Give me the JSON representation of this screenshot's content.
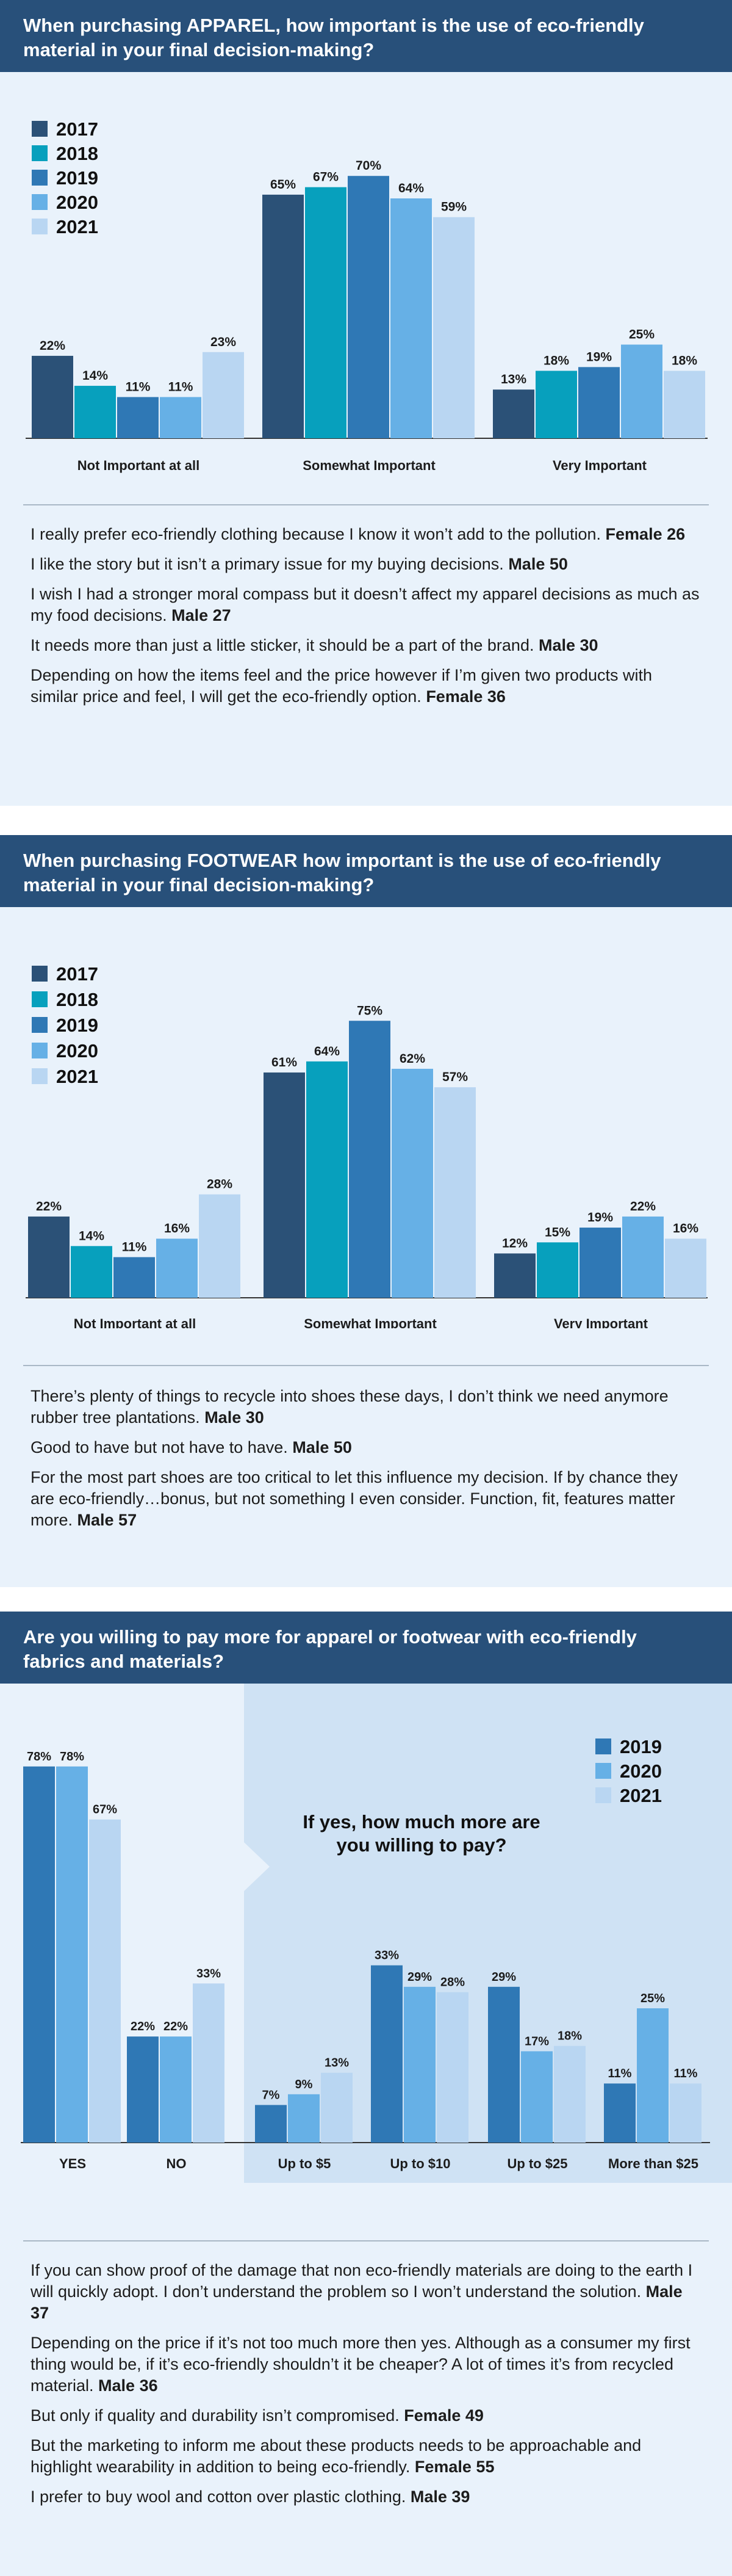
{
  "colors": {
    "header_bg": "#28507a",
    "panel_bg": "#e9f2fb",
    "inset_bg": "#cfe2f4",
    "y2017": "#2b5177",
    "y2018": "#07a0bd",
    "y2019": "#2f78b5",
    "y2020": "#66b0e6",
    "y2021": "#b9d6f2"
  },
  "apparel": {
    "title": "When purchasing APPAREL, how important is the use of eco-friendly material in your final decision-making?",
    "quotes": [
      {
        "text": "I really prefer eco-friendly clothing because I know it won’t add to the pollution.",
        "author": "Female 26"
      },
      {
        "text": "I like the story but it isn’t a primary issue for my buying decisions.",
        "author": "Male 50"
      },
      {
        "text": "I wish I had a stronger moral compass but it doesn’t affect my apparel decisions as much as my food decisions.",
        "author": "Male 27"
      },
      {
        "text": "It needs more than just a little sticker, it should be a part of the brand.",
        "author": "Male 30"
      },
      {
        "text": "Depending on how the items feel and the price however if I’m given two products with similar price and feel, I will get the eco-friendly option.",
        "author": "Female 36"
      }
    ]
  },
  "footwear": {
    "title": "When purchasing FOOTWEAR how important is the use of eco-friendly material in your final decision-making?",
    "quotes": [
      {
        "text": "There’s plenty of things to recycle into shoes these days, I don’t think we need anymore rubber tree plantations.",
        "author": "Male 30"
      },
      {
        "text": "Good to have but not have to have.",
        "author": "Male 50"
      },
      {
        "text": "For the most part shoes are too critical to let this influence my decision. If by chance they are eco-friendly…bonus, but not something I even consider. Function, fit, features matter more.",
        "author": "Male 57"
      }
    ]
  },
  "pay": {
    "title": "Are you willing to pay more for apparel or footwear with eco-friendly fabrics and materials?",
    "how_much_label": "If yes, how much more are you willing to pay?",
    "quotes": [
      {
        "text": "If you can show proof of the damage that non eco-friendly materials are doing to the earth I will quickly adopt. I don’t understand the problem so I won’t understand the solution.",
        "author": "Male 37"
      },
      {
        "text": "Depending on the price if it’s not too much more then yes. Although as a consumer my first thing would be, if it’s eco-friendly shouldn’t it be cheaper? A lot of times it’s from recycled material.",
        "author": "Male 36"
      },
      {
        "text": "But only if quality and durability isn’t compromised.",
        "author": "Female 49"
      },
      {
        "text": "But the marketing to inform me about these products needs to be approachable and highlight wearability in addition to being eco-friendly.",
        "author": "Female 55"
      },
      {
        "text": "I prefer to buy wool and cotton over plastic clothing.",
        "author": "Male 39"
      }
    ]
  },
  "chart_data": [
    {
      "type": "bar",
      "title": "When purchasing APPAREL, how important is the use of eco-friendly material in your final decision-making?",
      "categories": [
        "Not Important at all",
        "Somewhat Important",
        "Very Important"
      ],
      "series": [
        {
          "name": "2017",
          "values": [
            22,
            65,
            13
          ],
          "labels": [
            "22%",
            "65%",
            "13%"
          ]
        },
        {
          "name": "2018",
          "values": [
            14,
            67,
            18
          ],
          "labels": [
            "14%",
            "67%",
            "18%"
          ]
        },
        {
          "name": "2019",
          "values": [
            11,
            70,
            19
          ],
          "labels": [
            "11%",
            "70%",
            "19%"
          ]
        },
        {
          "name": "2020",
          "values": [
            11,
            64,
            25
          ],
          "labels": [
            "11%",
            "64%",
            "25%"
          ]
        },
        {
          "name": "2021",
          "values": [
            23,
            59,
            18
          ],
          "labels": [
            "23%",
            "59%",
            "18%"
          ]
        }
      ],
      "ylim": [
        0,
        70
      ],
      "legend": "top-left",
      "grid": false
    },
    {
      "type": "bar",
      "title": "When purchasing FOOTWEAR how important is the use of eco-friendly material in your final decision-making?",
      "categories": [
        "Not Important at all",
        "Somewhat Important",
        "Very Important"
      ],
      "series": [
        {
          "name": "2017",
          "values": [
            22,
            61,
            12
          ],
          "labels": [
            "22%",
            "61%",
            "12%"
          ]
        },
        {
          "name": "2018",
          "values": [
            14,
            64,
            15
          ],
          "labels": [
            "14%",
            "64%",
            "15%"
          ]
        },
        {
          "name": "2019",
          "values": [
            11,
            75,
            19
          ],
          "labels": [
            "11%",
            "75%",
            "19%"
          ]
        },
        {
          "name": "2020",
          "values": [
            16,
            62,
            22
          ],
          "labels": [
            "16%",
            "62%",
            "22%"
          ]
        },
        {
          "name": "2021",
          "values": [
            28,
            57,
            16
          ],
          "labels": [
            "28%",
            "57%",
            "16%"
          ]
        }
      ],
      "ylim": [
        0,
        75
      ],
      "legend": "top-left",
      "grid": false
    },
    {
      "type": "bar",
      "title": "Are you willing to pay more for apparel or footwear with eco-friendly fabrics and materials?",
      "categories": [
        "YES",
        "NO"
      ],
      "series": [
        {
          "name": "2019",
          "values": [
            78,
            22
          ],
          "labels": [
            "78%",
            "22%"
          ]
        },
        {
          "name": "2020",
          "values": [
            78,
            22
          ],
          "labels": [
            "78%",
            "22%"
          ]
        },
        {
          "name": "2021",
          "values": [
            67,
            33
          ],
          "labels": [
            "67%",
            "33%"
          ]
        }
      ],
      "ylim": [
        0,
        78
      ],
      "grid": false
    },
    {
      "type": "bar",
      "title": "If yes, how much more are you willing to pay?",
      "categories": [
        "Up to $5",
        "Up to $10",
        "Up to $25",
        "More than $25"
      ],
      "series": [
        {
          "name": "2019",
          "values": [
            7,
            33,
            29,
            11
          ],
          "labels": [
            "7%",
            "33%",
            "29%",
            "11%"
          ]
        },
        {
          "name": "2020",
          "values": [
            9,
            29,
            17,
            25
          ],
          "labels": [
            "9%",
            "29%",
            "17%",
            "25%"
          ]
        },
        {
          "name": "2021",
          "values": [
            13,
            28,
            18,
            11
          ],
          "labels": [
            "13%",
            "28%",
            "18%",
            "11%"
          ]
        }
      ],
      "ylim": [
        0,
        33
      ],
      "legend": "top-right",
      "grid": false
    }
  ]
}
